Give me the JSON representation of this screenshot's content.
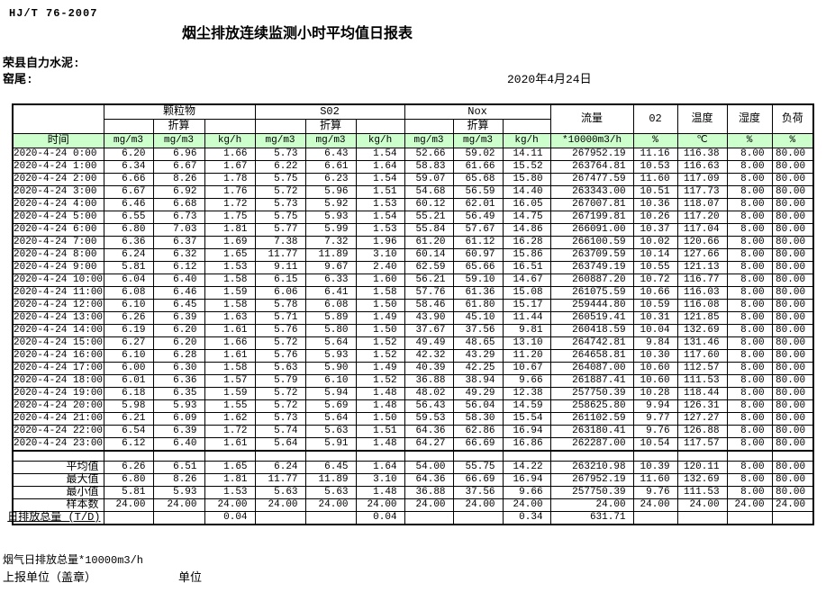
{
  "page": {
    "standard_code": "HJ/T 76-2007",
    "title": "烟尘排放连续监测小时平均值日报表",
    "company": "荣县自力水泥:",
    "location": "窑尾:",
    "date": "2020年4月24日"
  },
  "table": {
    "time_header": "时间",
    "groups": [
      {
        "label": "颗粒物"
      },
      {
        "label": "S02"
      },
      {
        "label": "Nox"
      }
    ],
    "converted_label": "折算",
    "scalar_columns": [
      "流量",
      "02",
      "温度",
      "湿度",
      "负荷"
    ],
    "units": [
      "mg/m3",
      "mg/m3",
      "kg/h",
      "mg/m3",
      "mg/m3",
      "kg/h",
      "mg/m3",
      "mg/m3",
      "kg/h",
      "*10000m3/h",
      "%",
      "℃",
      "%",
      "%"
    ],
    "rows": [
      [
        "2020-4-24 0:00",
        "6.20",
        "6.96",
        "1.66",
        "5.73",
        "6.43",
        "1.54",
        "52.66",
        "59.02",
        "14.11",
        "267952.19",
        "11.16",
        "116.38",
        "8.00",
        "80.00"
      ],
      [
        "2020-4-24 1:00",
        "6.34",
        "6.67",
        "1.67",
        "6.22",
        "6.61",
        "1.64",
        "58.83",
        "61.66",
        "15.52",
        "263764.81",
        "10.53",
        "116.63",
        "8.00",
        "80.00"
      ],
      [
        "2020-4-24 2:00",
        "6.66",
        "8.26",
        "1.78",
        "5.75",
        "6.23",
        "1.54",
        "59.07",
        "65.68",
        "15.80",
        "267477.59",
        "11.60",
        "117.09",
        "8.00",
        "80.00"
      ],
      [
        "2020-4-24 3:00",
        "6.67",
        "6.92",
        "1.76",
        "5.72",
        "5.96",
        "1.51",
        "54.68",
        "56.59",
        "14.40",
        "263343.00",
        "10.51",
        "117.73",
        "8.00",
        "80.00"
      ],
      [
        "2020-4-24 4:00",
        "6.46",
        "6.68",
        "1.72",
        "5.73",
        "5.92",
        "1.53",
        "60.12",
        "62.01",
        "16.05",
        "267007.81",
        "10.36",
        "118.07",
        "8.00",
        "80.00"
      ],
      [
        "2020-4-24 5:00",
        "6.55",
        "6.73",
        "1.75",
        "5.75",
        "5.93",
        "1.54",
        "55.21",
        "56.49",
        "14.75",
        "267199.81",
        "10.26",
        "117.20",
        "8.00",
        "80.00"
      ],
      [
        "2020-4-24 6:00",
        "6.80",
        "7.03",
        "1.81",
        "5.77",
        "5.99",
        "1.53",
        "55.84",
        "57.67",
        "14.86",
        "266091.00",
        "10.37",
        "117.04",
        "8.00",
        "80.00"
      ],
      [
        "2020-4-24 7:00",
        "6.36",
        "6.37",
        "1.69",
        "7.38",
        "7.32",
        "1.96",
        "61.20",
        "61.12",
        "16.28",
        "266100.59",
        "10.02",
        "120.66",
        "8.00",
        "80.00"
      ],
      [
        "2020-4-24 8:00",
        "6.24",
        "6.32",
        "1.65",
        "11.77",
        "11.89",
        "3.10",
        "60.14",
        "60.97",
        "15.86",
        "263709.59",
        "10.14",
        "127.66",
        "8.00",
        "80.00"
      ],
      [
        "2020-4-24 9:00",
        "5.81",
        "6.12",
        "1.53",
        "9.11",
        "9.67",
        "2.40",
        "62.59",
        "65.66",
        "16.51",
        "263749.19",
        "10.55",
        "121.13",
        "8.00",
        "80.00"
      ],
      [
        "2020-4-24 10:00",
        "6.04",
        "6.40",
        "1.58",
        "6.15",
        "6.33",
        "1.60",
        "56.21",
        "59.10",
        "14.67",
        "260887.20",
        "10.72",
        "116.77",
        "8.00",
        "80.00"
      ],
      [
        "2020-4-24 11:00",
        "6.08",
        "6.46",
        "1.59",
        "6.06",
        "6.41",
        "1.58",
        "57.76",
        "61.36",
        "15.08",
        "261075.59",
        "10.66",
        "116.03",
        "8.00",
        "80.00"
      ],
      [
        "2020-4-24 12:00",
        "6.10",
        "6.45",
        "1.58",
        "5.78",
        "6.08",
        "1.50",
        "58.46",
        "61.80",
        "15.17",
        "259444.80",
        "10.59",
        "116.08",
        "8.00",
        "80.00"
      ],
      [
        "2020-4-24 13:00",
        "6.26",
        "6.39",
        "1.63",
        "5.71",
        "5.89",
        "1.49",
        "43.90",
        "45.10",
        "11.44",
        "260519.41",
        "10.31",
        "121.85",
        "8.00",
        "80.00"
      ],
      [
        "2020-4-24 14:00",
        "6.19",
        "6.20",
        "1.61",
        "5.76",
        "5.80",
        "1.50",
        "37.67",
        "37.56",
        "9.81",
        "260418.59",
        "10.04",
        "132.69",
        "8.00",
        "80.00"
      ],
      [
        "2020-4-24 15:00",
        "6.27",
        "6.20",
        "1.66",
        "5.72",
        "5.64",
        "1.52",
        "49.49",
        "48.65",
        "13.10",
        "264742.81",
        "9.84",
        "131.46",
        "8.00",
        "80.00"
      ],
      [
        "2020-4-24 16:00",
        "6.10",
        "6.28",
        "1.61",
        "5.76",
        "5.93",
        "1.52",
        "42.32",
        "43.29",
        "11.20",
        "264658.81",
        "10.30",
        "117.60",
        "8.00",
        "80.00"
      ],
      [
        "2020-4-24 17:00",
        "6.00",
        "6.30",
        "1.58",
        "5.63",
        "5.90",
        "1.49",
        "40.39",
        "42.25",
        "10.67",
        "264087.00",
        "10.60",
        "112.57",
        "8.00",
        "80.00"
      ],
      [
        "2020-4-24 18:00",
        "6.01",
        "6.36",
        "1.57",
        "5.79",
        "6.10",
        "1.52",
        "36.88",
        "38.94",
        "9.66",
        "261887.41",
        "10.60",
        "111.53",
        "8.00",
        "80.00"
      ],
      [
        "2020-4-24 19:00",
        "6.18",
        "6.35",
        "1.59",
        "5.72",
        "5.94",
        "1.48",
        "48.02",
        "49.29",
        "12.38",
        "257750.39",
        "10.28",
        "118.44",
        "8.00",
        "80.00"
      ],
      [
        "2020-4-24 20:00",
        "5.98",
        "5.93",
        "1.55",
        "5.72",
        "5.69",
        "1.48",
        "56.43",
        "56.04",
        "14.59",
        "258625.80",
        "9.94",
        "126.31",
        "8.00",
        "80.00"
      ],
      [
        "2020-4-24 21:00",
        "6.21",
        "6.09",
        "1.62",
        "5.73",
        "5.64",
        "1.50",
        "59.53",
        "58.30",
        "15.54",
        "261102.59",
        "9.77",
        "127.27",
        "8.00",
        "80.00"
      ],
      [
        "2020-4-24 22:00",
        "6.54",
        "6.39",
        "1.72",
        "5.74",
        "5.63",
        "1.51",
        "64.36",
        "62.86",
        "16.94",
        "263180.41",
        "9.76",
        "126.88",
        "8.00",
        "80.00"
      ],
      [
        "2020-4-24 23:00",
        "6.12",
        "6.40",
        "1.61",
        "5.64",
        "5.91",
        "1.48",
        "64.27",
        "66.69",
        "16.86",
        "262287.00",
        "10.54",
        "117.57",
        "8.00",
        "80.00"
      ]
    ],
    "summary": [
      {
        "label": "平均值",
        "values": [
          "6.26",
          "6.51",
          "1.65",
          "6.24",
          "6.45",
          "1.64",
          "54.00",
          "55.75",
          "14.22",
          "263210.98",
          "10.39",
          "120.11",
          "8.00",
          "80.00"
        ]
      },
      {
        "label": "最大值",
        "values": [
          "6.80",
          "8.26",
          "1.81",
          "11.77",
          "11.89",
          "3.10",
          "64.36",
          "66.69",
          "16.94",
          "267952.19",
          "11.60",
          "132.69",
          "8.00",
          "80.00"
        ]
      },
      {
        "label": "最小值",
        "values": [
          "5.81",
          "5.93",
          "1.53",
          "5.63",
          "5.63",
          "1.48",
          "36.88",
          "37.56",
          "9.66",
          "257750.39",
          "9.76",
          "111.53",
          "8.00",
          "80.00"
        ]
      },
      {
        "label": "样本数",
        "values": [
          "24.00",
          "24.00",
          "24.00",
          "24.00",
          "24.00",
          "24.00",
          "24.00",
          "24.00",
          "24.00",
          "24.00",
          "24.00",
          "24.00",
          "24.00",
          "24.00"
        ]
      },
      {
        "label": "日排放总量 (T/D)",
        "values": [
          "",
          "",
          "0.04",
          "",
          "",
          "0.04",
          "",
          "",
          "0.34",
          "631.71",
          "",
          "",
          "",
          ""
        ]
      }
    ]
  },
  "footer": {
    "flue_total_label": "烟气日排放总量*10000m3/h",
    "report_unit_label": "上报单位（盖章）",
    "unit_label": "单位"
  }
}
